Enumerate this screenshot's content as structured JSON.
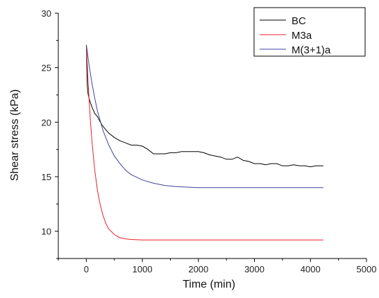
{
  "chart_data": {
    "type": "line",
    "title": "",
    "xlabel": "Time (min)",
    "ylabel": "Shear stress (kPa)",
    "xlim": [
      -500,
      5000
    ],
    "ylim": [
      7.5,
      30
    ],
    "xticks": [
      0,
      1000,
      2000,
      3000,
      4000,
      5000
    ],
    "yticks": [
      10,
      15,
      20,
      25,
      30
    ],
    "grid": false,
    "legend_position": "top-right",
    "series": [
      {
        "name": "BC",
        "color": "#000000",
        "points": [
          [
            0,
            27.1
          ],
          [
            15,
            23.5
          ],
          [
            30,
            22.6
          ],
          [
            60,
            22.0
          ],
          [
            100,
            21.4
          ],
          [
            150,
            20.8
          ],
          [
            200,
            20.5
          ],
          [
            250,
            20.0
          ],
          [
            300,
            19.6
          ],
          [
            350,
            19.3
          ],
          [
            400,
            19.0
          ],
          [
            450,
            18.8
          ],
          [
            500,
            18.6
          ],
          [
            600,
            18.3
          ],
          [
            700,
            18.1
          ],
          [
            800,
            17.9
          ],
          [
            900,
            17.9
          ],
          [
            1000,
            17.8
          ],
          [
            1100,
            17.5
          ],
          [
            1200,
            17.1
          ],
          [
            1300,
            17.1
          ],
          [
            1400,
            17.1
          ],
          [
            1500,
            17.2
          ],
          [
            1600,
            17.2
          ],
          [
            1700,
            17.3
          ],
          [
            1800,
            17.3
          ],
          [
            1900,
            17.3
          ],
          [
            2000,
            17.3
          ],
          [
            2100,
            17.2
          ],
          [
            2200,
            17.0
          ],
          [
            2300,
            16.9
          ],
          [
            2400,
            16.8
          ],
          [
            2500,
            16.6
          ],
          [
            2600,
            16.6
          ],
          [
            2700,
            16.8
          ],
          [
            2800,
            16.5
          ],
          [
            2900,
            16.4
          ],
          [
            3000,
            16.2
          ],
          [
            3100,
            16.2
          ],
          [
            3200,
            16.1
          ],
          [
            3300,
            16.2
          ],
          [
            3400,
            16.2
          ],
          [
            3500,
            16.0
          ],
          [
            3600,
            16.0
          ],
          [
            3700,
            16.1
          ],
          [
            3800,
            16.0
          ],
          [
            3900,
            16.0
          ],
          [
            4000,
            15.9
          ],
          [
            4100,
            16.0
          ],
          [
            4230,
            16.0
          ]
        ]
      },
      {
        "name": "M3a",
        "color": "#e8202a",
        "points": [
          [
            0,
            27.1
          ],
          [
            25,
            24.4
          ],
          [
            50,
            22.0
          ],
          [
            75,
            20.0
          ],
          [
            100,
            18.3
          ],
          [
            150,
            15.6
          ],
          [
            200,
            13.7
          ],
          [
            250,
            12.4
          ],
          [
            300,
            11.4
          ],
          [
            350,
            10.7
          ],
          [
            400,
            10.2
          ],
          [
            500,
            9.7
          ],
          [
            600,
            9.4
          ],
          [
            700,
            9.3
          ],
          [
            800,
            9.25
          ],
          [
            1000,
            9.2
          ],
          [
            1500,
            9.2
          ],
          [
            2000,
            9.2
          ],
          [
            3000,
            9.2
          ],
          [
            4230,
            9.2
          ]
        ]
      },
      {
        "name": "M(3+1)a",
        "color": "#4040a0",
        "points": [
          [
            0,
            27.1
          ],
          [
            50,
            25.2
          ],
          [
            100,
            23.6
          ],
          [
            150,
            22.2
          ],
          [
            200,
            21.0
          ],
          [
            300,
            19.2
          ],
          [
            400,
            17.9
          ],
          [
            500,
            16.9
          ],
          [
            600,
            16.2
          ],
          [
            700,
            15.6
          ],
          [
            800,
            15.2
          ],
          [
            1000,
            14.7
          ],
          [
            1200,
            14.4
          ],
          [
            1400,
            14.2
          ],
          [
            1600,
            14.1
          ],
          [
            2000,
            14.0
          ],
          [
            2500,
            14.0
          ],
          [
            3000,
            14.0
          ],
          [
            3500,
            14.0
          ],
          [
            4230,
            14.0
          ]
        ]
      }
    ]
  }
}
